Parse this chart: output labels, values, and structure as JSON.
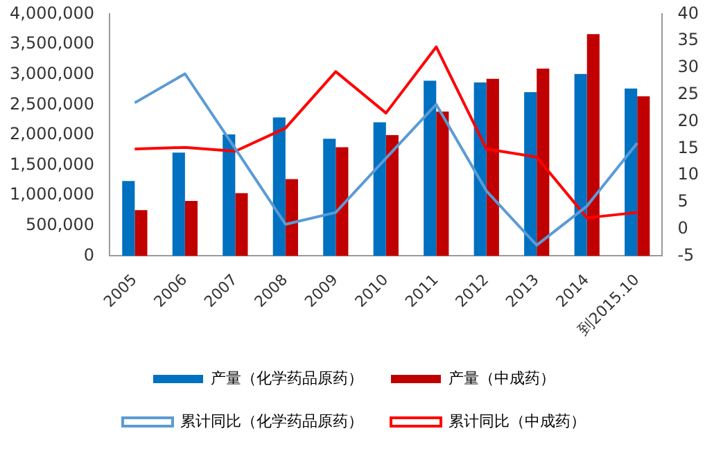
{
  "chart_data": {
    "type": "bar",
    "categories": [
      "2005",
      "2006",
      "2007",
      "2008",
      "2009",
      "2010",
      "2011",
      "2012",
      "2013",
      "2014",
      "到2015.10"
    ],
    "series": [
      {
        "name": "产量（化学药品原药）",
        "color": "#0070c0",
        "values": [
          1240000,
          1710000,
          2010000,
          2290000,
          1940000,
          2210000,
          2900000,
          2870000,
          2710000,
          3010000,
          2770000
        ]
      },
      {
        "name": "产量（中成药）",
        "color": "#c00000",
        "values": [
          760000,
          910000,
          1040000,
          1270000,
          1800000,
          2000000,
          2390000,
          2930000,
          3100000,
          3670000,
          2640000
        ]
      },
      {
        "name": "累计同比（化学药品原药）",
        "type": "line",
        "axis": "y2",
        "color": "#5b9bd5",
        "values": [
          23.5,
          28.9,
          15,
          0.9,
          3.1,
          13.2,
          23.2,
          7.1,
          -3,
          4.3,
          16
        ]
      },
      {
        "name": "累计同比（中成药）",
        "type": "line",
        "axis": "y2",
        "color": "#ff0000",
        "values": [
          14.9,
          15.2,
          14.5,
          18.8,
          29.3,
          21.6,
          33.9,
          14.9,
          13.4,
          2.1,
          3.1
        ]
      }
    ],
    "ylim": [
      0,
      4000000
    ],
    "yticks": [
      {
        "value": 0,
        "label": "0"
      },
      {
        "value": 500000,
        "label": "500,000"
      },
      {
        "value": 1000000,
        "label": "1,000,000"
      },
      {
        "value": 1500000,
        "label": "1,500,000"
      },
      {
        "value": 2000000,
        "label": "2,000,000"
      },
      {
        "value": 2500000,
        "label": "2,500,000"
      },
      {
        "value": 3000000,
        "label": "3,000,000"
      },
      {
        "value": 3500000,
        "label": "3,500,000"
      },
      {
        "value": 4000000,
        "label": "4,000,000"
      }
    ],
    "y2lim": [
      -5,
      40
    ],
    "y2ticks": [
      -5,
      0,
      5,
      10,
      15,
      20,
      25,
      30,
      35,
      40
    ],
    "grid": false,
    "legend": "bottom",
    "marker": "none"
  }
}
